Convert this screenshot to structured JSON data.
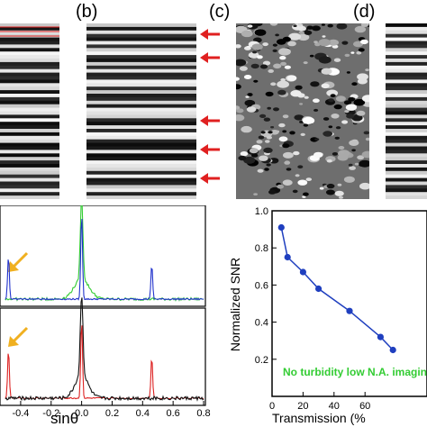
{
  "panel_labels": {
    "b": "(b)",
    "c": "(c)",
    "d": "(d)"
  },
  "colors": {
    "arrow_red": "#e02020",
    "arrow_orange": "#f0b020",
    "trace_green": "#33cc33",
    "trace_blue": "#2233cc",
    "trace_red": "#dd2222",
    "trace_black": "#111111",
    "snr_line": "#1f3fbf",
    "annotation_green": "#33cc33"
  },
  "stripe_panel_b": {
    "pattern": [
      1,
      0,
      1,
      1,
      0,
      0,
      1,
      0,
      1,
      1,
      1,
      0,
      0,
      1,
      0,
      0,
      0,
      1,
      1,
      0,
      1,
      0,
      0,
      1,
      1,
      1,
      0,
      1,
      0,
      0,
      1,
      0,
      1,
      1,
      0,
      0,
      1,
      0,
      1,
      0,
      0,
      1,
      1,
      0,
      1,
      0,
      0,
      1,
      0,
      1
    ]
  },
  "stripe_panel_d": {
    "pattern": [
      0,
      1,
      1,
      0,
      1,
      0,
      0,
      1,
      1,
      0,
      1,
      0,
      1,
      1,
      0,
      0,
      1,
      0,
      0,
      1,
      1,
      0,
      1,
      1,
      0,
      0,
      1,
      0,
      1,
      0,
      1,
      1,
      0,
      0,
      1,
      0,
      0,
      1,
      1,
      0,
      1,
      0,
      1,
      1,
      0,
      1,
      0,
      0,
      1,
      1
    ]
  },
  "spectrum_plots": {
    "xlabel": "sinθ",
    "x_ticks": [
      "-0.4",
      "-0.2",
      "0.0",
      "0.2",
      "0.4",
      "0.6",
      "0.8"
    ],
    "top": {
      "series": [
        {
          "color": "green"
        },
        {
          "color": "blue"
        }
      ]
    },
    "bottom": {
      "series": [
        {
          "color": "red"
        },
        {
          "color": "black"
        }
      ]
    }
  },
  "chart_data": {
    "type": "line",
    "xlabel": "Transmission (%",
    "ylabel": "Normalized SNR",
    "x_ticks": [
      "0",
      "20",
      "40",
      "60"
    ],
    "y_ticks": [
      "0.2",
      "0.4",
      "0.6",
      "0.8",
      "1.0"
    ],
    "xlim": [
      0,
      100
    ],
    "ylim": [
      0.0,
      1.0
    ],
    "annotation": "No turbidity low N.A. imagin",
    "series": [
      {
        "x": [
          6,
          10,
          20,
          30,
          50,
          70,
          78
        ],
        "y": [
          0.91,
          0.75,
          0.67,
          0.58,
          0.46,
          0.32,
          0.25
        ]
      }
    ]
  }
}
